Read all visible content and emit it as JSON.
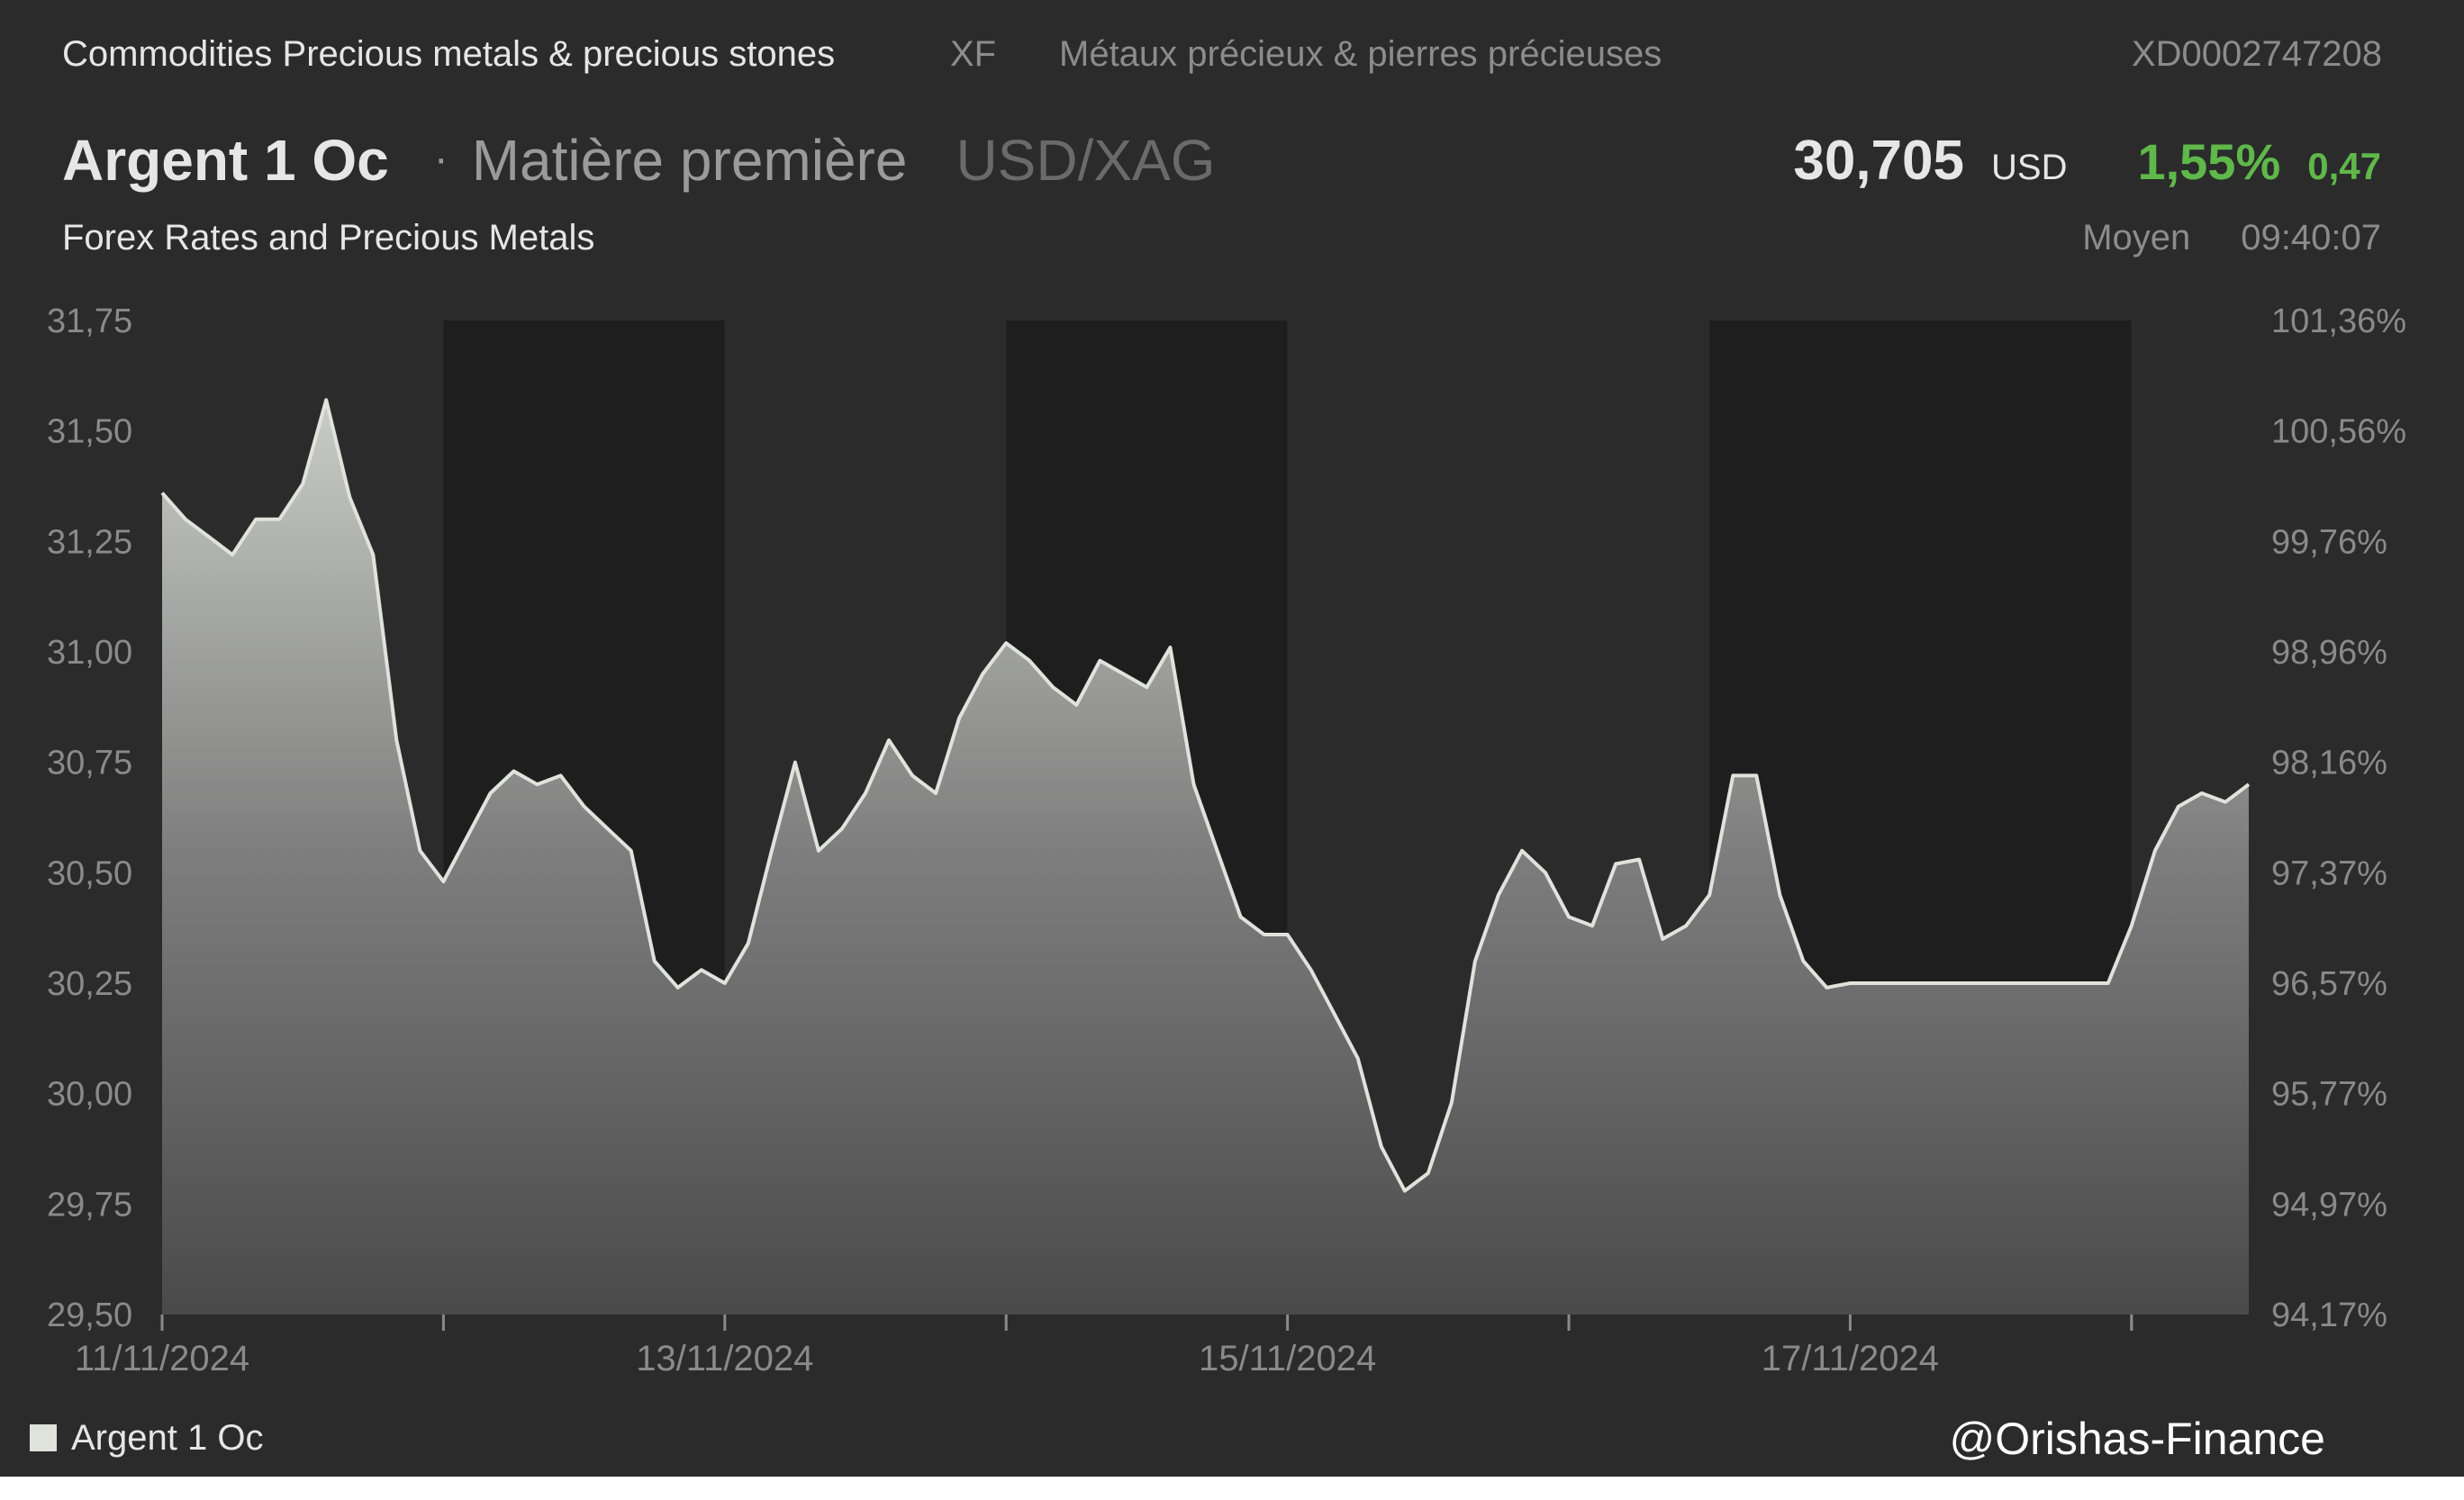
{
  "header": {
    "category": "Commodities Precious metals & precious stones",
    "exchange": "XF",
    "category_fr": "Métaux précieux & pierres précieuses",
    "isin": "XD0002747208",
    "name": "Argent 1 Oc",
    "separator": "·",
    "asset_type": "Matière première",
    "pair": "USD/XAG",
    "subtitle": "Forex Rates and Precious Metals",
    "price": "30,705",
    "currency": "USD",
    "change_pct": "1,55%",
    "change_abs": "0,47",
    "price_type": "Moyen",
    "time": "09:40:07"
  },
  "colors": {
    "background": "#2b2b2b",
    "weekend_shading": "#1e1e1e",
    "line": "#dfe3dc",
    "positive": "#5fb84a"
  },
  "legend": {
    "label": "Argent 1 Oc"
  },
  "watermark": "@Orishas-Finance",
  "chart_data": {
    "type": "area",
    "series": [
      {
        "name": "Argent 1 Oc",
        "points": [
          [
            "11/11/2024 00:00",
            31.36
          ],
          [
            "11/11/2024 02:00",
            31.3
          ],
          [
            "11/11/2024 04:00",
            31.26
          ],
          [
            "11/11/2024 06:00",
            31.22
          ],
          [
            "11/11/2024 08:00",
            31.3
          ],
          [
            "11/11/2024 10:00",
            31.3
          ],
          [
            "11/11/2024 12:00",
            31.38
          ],
          [
            "11/11/2024 14:00",
            31.57
          ],
          [
            "11/11/2024 16:00",
            31.35
          ],
          [
            "11/11/2024 18:00",
            31.22
          ],
          [
            "11/11/2024 20:00",
            30.8
          ],
          [
            "11/11/2024 22:00",
            30.55
          ],
          [
            "12/11/2024 00:00",
            30.48
          ],
          [
            "12/11/2024 02:00",
            30.58
          ],
          [
            "12/11/2024 04:00",
            30.68
          ],
          [
            "12/11/2024 06:00",
            30.73
          ],
          [
            "12/11/2024 08:00",
            30.7
          ],
          [
            "12/11/2024 10:00",
            30.72
          ],
          [
            "12/11/2024 12:00",
            30.65
          ],
          [
            "12/11/2024 14:00",
            30.6
          ],
          [
            "12/11/2024 16:00",
            30.55
          ],
          [
            "12/11/2024 18:00",
            30.3
          ],
          [
            "12/11/2024 20:00",
            30.24
          ],
          [
            "12/11/2024 22:00",
            30.28
          ],
          [
            "13/11/2024 00:00",
            30.25
          ],
          [
            "13/11/2024 02:00",
            30.34
          ],
          [
            "13/11/2024 04:00",
            30.55
          ],
          [
            "13/11/2024 06:00",
            30.75
          ],
          [
            "13/11/2024 08:00",
            30.55
          ],
          [
            "13/11/2024 10:00",
            30.6
          ],
          [
            "13/11/2024 12:00",
            30.68
          ],
          [
            "13/11/2024 14:00",
            30.8
          ],
          [
            "13/11/2024 16:00",
            30.72
          ],
          [
            "13/11/2024 18:00",
            30.68
          ],
          [
            "13/11/2024 20:00",
            30.85
          ],
          [
            "13/11/2024 22:00",
            30.95
          ],
          [
            "14/11/2024 00:00",
            31.02
          ],
          [
            "14/11/2024 02:00",
            30.98
          ],
          [
            "14/11/2024 04:00",
            30.92
          ],
          [
            "14/11/2024 06:00",
            30.88
          ],
          [
            "14/11/2024 08:00",
            30.98
          ],
          [
            "14/11/2024 10:00",
            30.95
          ],
          [
            "14/11/2024 12:00",
            30.92
          ],
          [
            "14/11/2024 14:00",
            31.01
          ],
          [
            "14/11/2024 16:00",
            30.7
          ],
          [
            "14/11/2024 18:00",
            30.55
          ],
          [
            "14/11/2024 20:00",
            30.4
          ],
          [
            "14/11/2024 22:00",
            30.36
          ],
          [
            "15/11/2024 00:00",
            30.36
          ],
          [
            "15/11/2024 02:00",
            30.28
          ],
          [
            "15/11/2024 04:00",
            30.18
          ],
          [
            "15/11/2024 06:00",
            30.08
          ],
          [
            "15/11/2024 08:00",
            29.88
          ],
          [
            "15/11/2024 10:00",
            29.78
          ],
          [
            "15/11/2024 12:00",
            29.82
          ],
          [
            "15/11/2024 14:00",
            29.98
          ],
          [
            "15/11/2024 16:00",
            30.3
          ],
          [
            "15/11/2024 18:00",
            30.45
          ],
          [
            "15/11/2024 20:00",
            30.55
          ],
          [
            "15/11/2024 22:00",
            30.5
          ],
          [
            "16/11/2024 00:00",
            30.4
          ],
          [
            "16/11/2024 02:00",
            30.38
          ],
          [
            "16/11/2024 04:00",
            30.52
          ],
          [
            "16/11/2024 06:00",
            30.53
          ],
          [
            "16/11/2024 08:00",
            30.35
          ],
          [
            "16/11/2024 10:00",
            30.38
          ],
          [
            "16/11/2024 12:00",
            30.45
          ],
          [
            "16/11/2024 14:00",
            30.72
          ],
          [
            "16/11/2024 16:00",
            30.72
          ],
          [
            "16/11/2024 18:00",
            30.45
          ],
          [
            "16/11/2024 20:00",
            30.3
          ],
          [
            "16/11/2024 22:00",
            30.24
          ],
          [
            "17/11/2024 00:00",
            30.25
          ],
          [
            "17/11/2024 22:00",
            30.25
          ],
          [
            "18/11/2024 00:00",
            30.38
          ],
          [
            "18/11/2024 02:00",
            30.55
          ],
          [
            "18/11/2024 04:00",
            30.65
          ],
          [
            "18/11/2024 06:00",
            30.68
          ],
          [
            "18/11/2024 08:00",
            30.66
          ],
          [
            "18/11/2024 10:00",
            30.7
          ]
        ]
      }
    ],
    "x_ticks": [
      "11/11/2024",
      "13/11/2024",
      "15/11/2024",
      "17/11/2024"
    ],
    "y_ticks": [
      "31,75",
      "31,50",
      "31,25",
      "31,00",
      "30,75",
      "30,50",
      "30,25",
      "30,00",
      "29,75",
      "29,50"
    ],
    "y2_ticks": [
      "101,36%",
      "100,56%",
      "99,76%",
      "98,96%",
      "98,16%",
      "97,37%",
      "96,57%",
      "95,77%",
      "94,97%",
      "94,17%"
    ],
    "xlim": [
      "11/11/2024 00:00",
      "18/11/2024 10:00"
    ],
    "ylim": [
      29.5,
      31.75
    ],
    "shaded_periods": [
      [
        "12/11/2024 00:00",
        "12/11/2024 23:59"
      ],
      [
        "14/11/2024 00:00",
        "14/11/2024 23:59"
      ],
      [
        "16/11/2024 12:00",
        "17/11/2024 23:59"
      ]
    ],
    "grid": false,
    "legend_position": "bottom-left"
  }
}
